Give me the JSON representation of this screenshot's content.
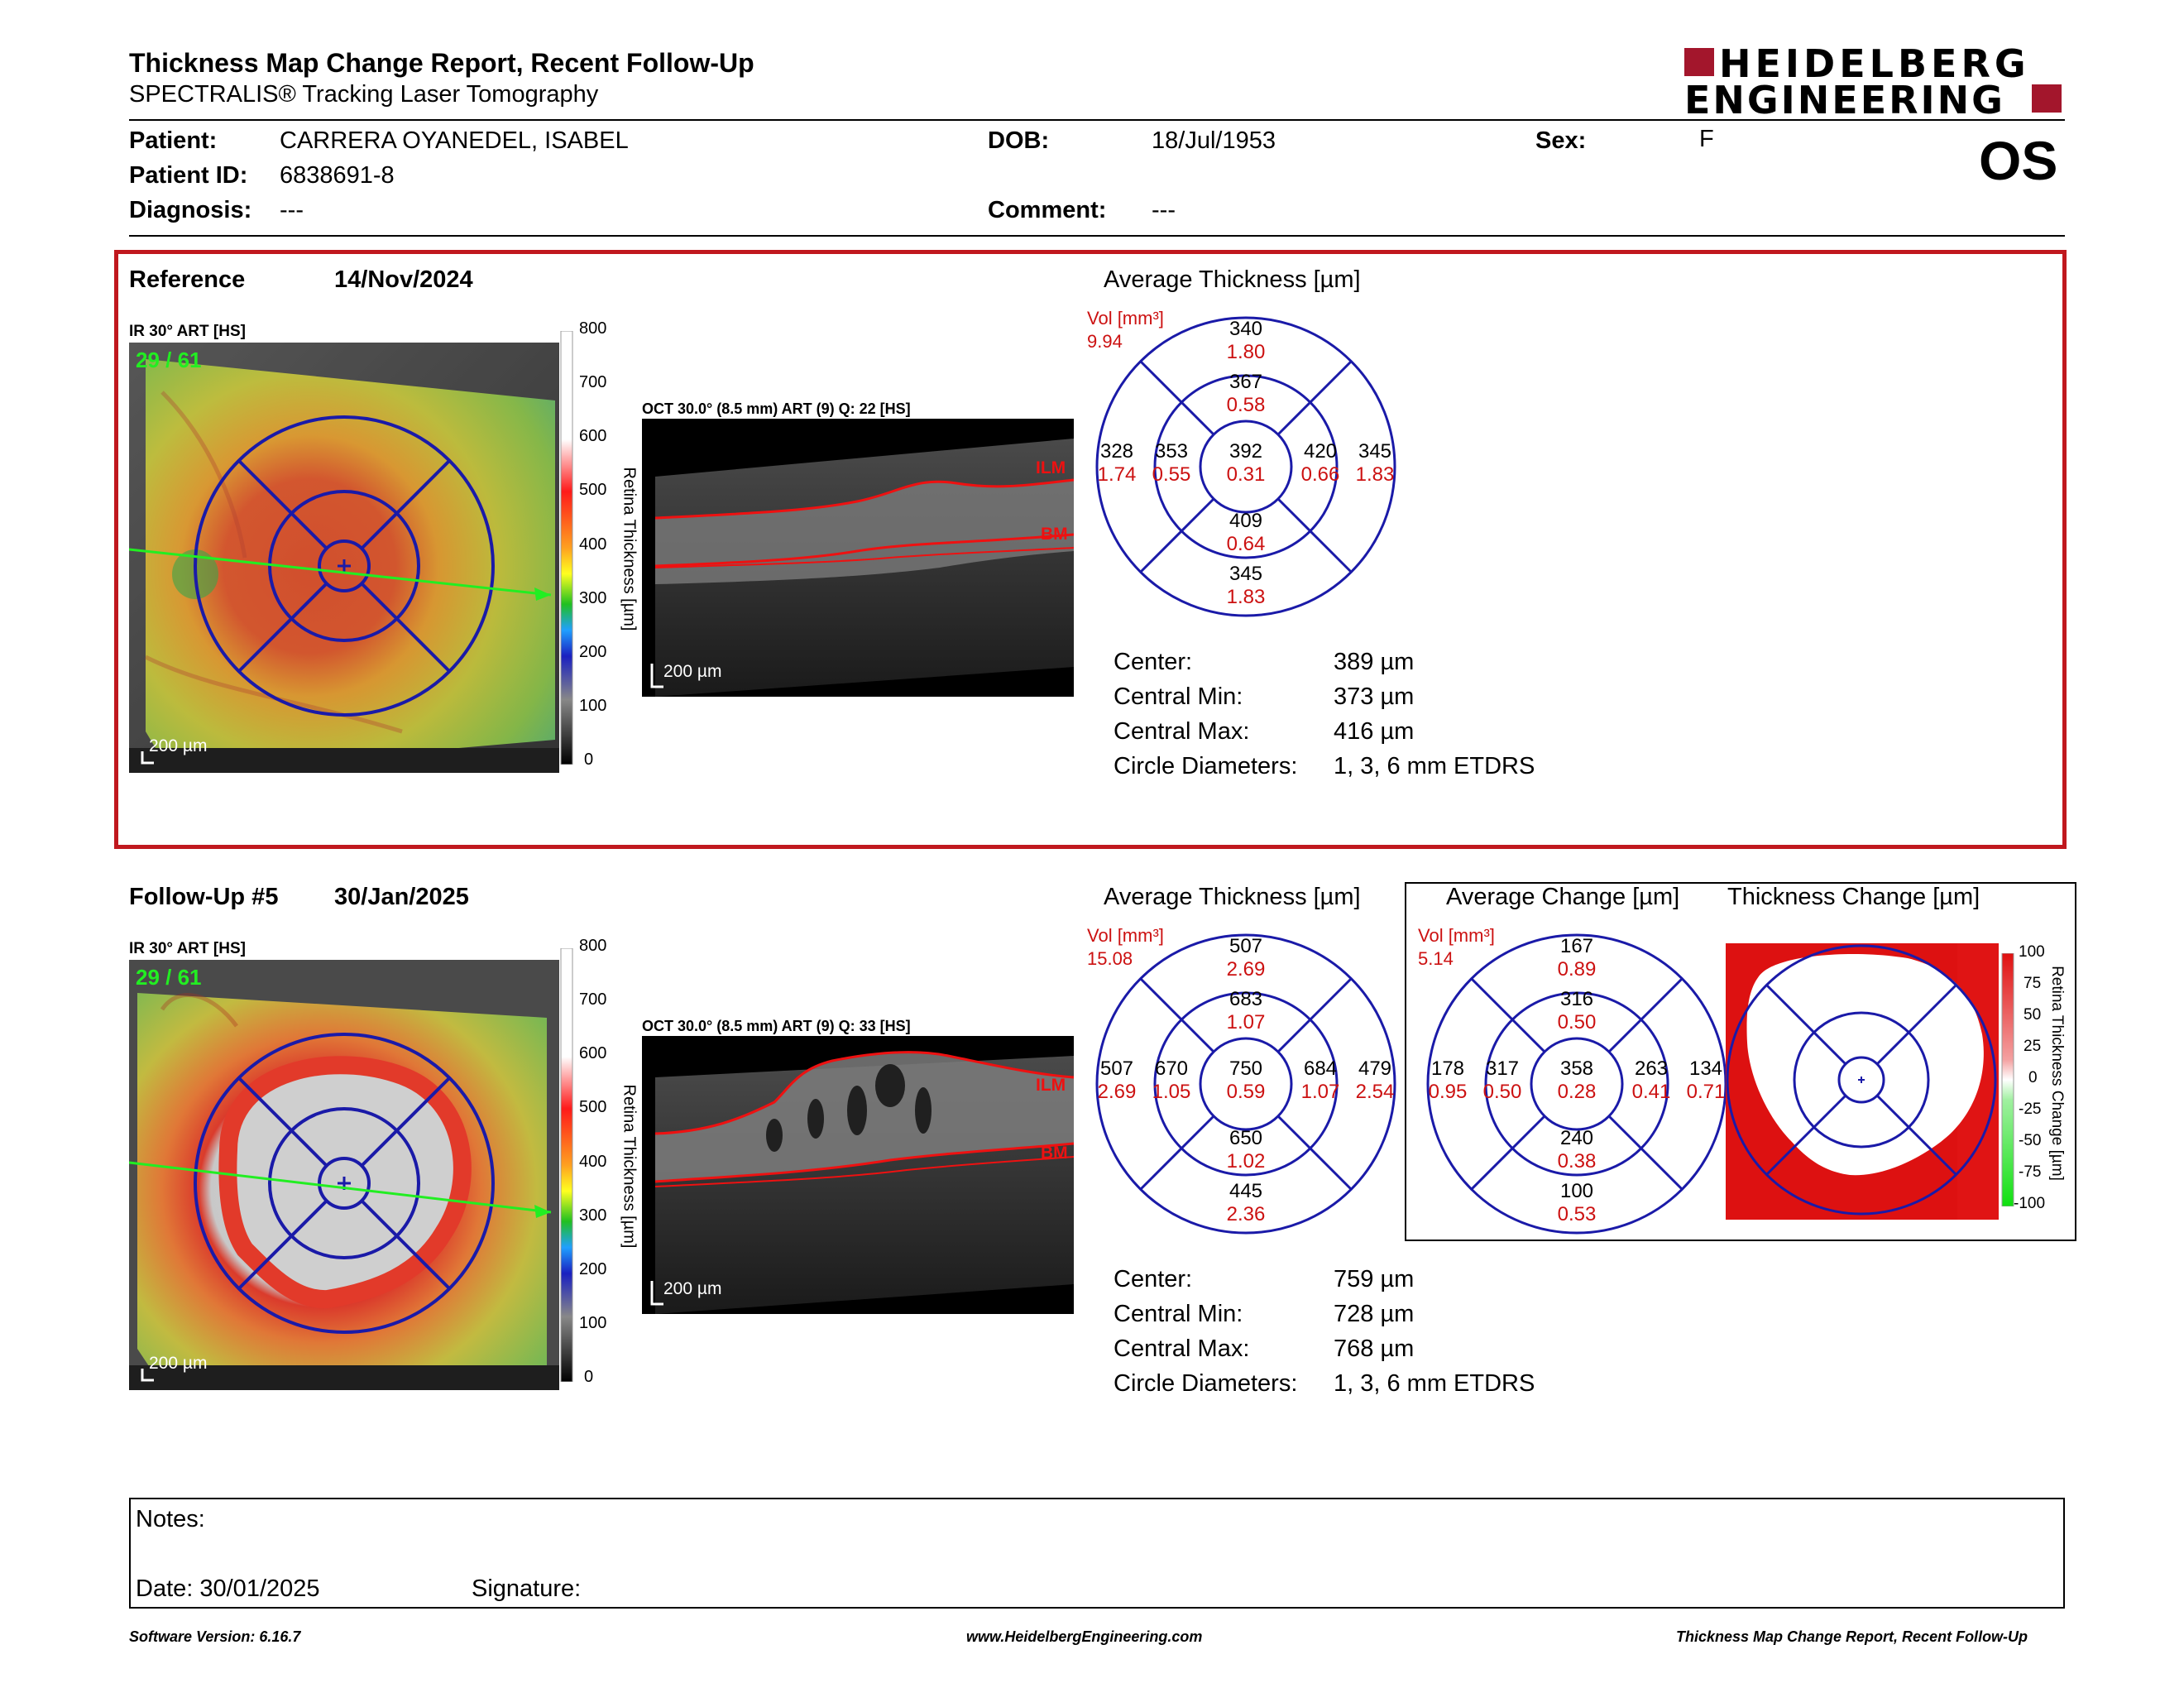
{
  "report": {
    "title": "Thickness Map Change Report, Recent Follow-Up",
    "subtitle": "SPECTRALIS® Tracking Laser Tomography",
    "logo_line1": "HEIDELBERG",
    "logo_line2": "ENGINEERING",
    "eye": "OS"
  },
  "patient": {
    "name_label": "Patient:",
    "name": "CARRERA OYANEDEL, ISABEL",
    "id_label": "Patient ID:",
    "id": "6838691-8",
    "diagnosis_label": "Diagnosis:",
    "diagnosis": "---",
    "dob_label": "DOB:",
    "dob": "18/Jul/1953",
    "comment_label": "Comment:",
    "comment": "---",
    "sex_label": "Sex:",
    "sex": "F"
  },
  "reference": {
    "label": "Reference",
    "date": "14/Nov/2024",
    "ir_label": "IR 30° ART [HS]",
    "ir_overlay": "29 / 61",
    "ir_scalebar": "200 µm",
    "scale_ticks": [
      "800",
      "700",
      "600",
      "500",
      "400",
      "300",
      "200",
      "100",
      "0"
    ],
    "scale_title": "Retina Thickness [µm]",
    "oct_label": "OCT 30.0° (8.5 mm) ART (9) Q: 22 [HS]",
    "oct_scalebar": "200 µm",
    "ilm": "ILM",
    "bm": "BM",
    "avg_title": "Average Thickness [µm]",
    "vol_label": "Vol [mm³]",
    "vol_total": "9.94",
    "grid": {
      "outer_top": [
        "340",
        "1.80"
      ],
      "inner_top": [
        "367",
        "0.58"
      ],
      "outer_left": [
        "328",
        "1.74"
      ],
      "inner_left": [
        "353",
        "0.55"
      ],
      "center": [
        "392",
        "0.31"
      ],
      "inner_right": [
        "420",
        "0.66"
      ],
      "outer_right": [
        "345",
        "1.83"
      ],
      "inner_bottom": [
        "409",
        "0.64"
      ],
      "outer_bottom": [
        "345",
        "1.83"
      ]
    },
    "stats": [
      {
        "label": "Center:",
        "value": "389 µm"
      },
      {
        "label": "Central Min:",
        "value": "373 µm"
      },
      {
        "label": "Central Max:",
        "value": "416 µm"
      },
      {
        "label": "Circle Diameters:",
        "value": "1, 3, 6 mm ETDRS"
      }
    ]
  },
  "followup": {
    "label": "Follow-Up #5",
    "date": "30/Jan/2025",
    "ir_label": "IR 30° ART [HS]",
    "ir_overlay": "29 / 61",
    "ir_scalebar": "200 µm",
    "scale_ticks": [
      "800",
      "700",
      "600",
      "500",
      "400",
      "300",
      "200",
      "100",
      "0"
    ],
    "scale_title": "Retina Thickness [µm]",
    "oct_label": "OCT 30.0° (8.5 mm) ART (9) Q: 33 [HS]",
    "oct_scalebar": "200 µm",
    "ilm": "ILM",
    "bm": "BM",
    "avg_title": "Average Thickness [µm]",
    "vol_label": "Vol [mm³]",
    "vol_total": "15.08",
    "grid": {
      "outer_top": [
        "507",
        "2.69"
      ],
      "inner_top": [
        "683",
        "1.07"
      ],
      "outer_left": [
        "507",
        "2.69"
      ],
      "inner_left": [
        "670",
        "1.05"
      ],
      "center": [
        "750",
        "0.59"
      ],
      "inner_right": [
        "684",
        "1.07"
      ],
      "outer_right": [
        "479",
        "2.54"
      ],
      "inner_bottom": [
        "650",
        "1.02"
      ],
      "outer_bottom": [
        "445",
        "2.36"
      ]
    },
    "change_title": "Average Change [µm]",
    "change_vol_label": "Vol [mm³]",
    "change_vol_total": "5.14",
    "change_grid": {
      "outer_top": [
        "167",
        "0.89"
      ],
      "inner_top": [
        "316",
        "0.50"
      ],
      "outer_left": [
        "178",
        "0.95"
      ],
      "inner_left": [
        "317",
        "0.50"
      ],
      "center": [
        "358",
        "0.28"
      ],
      "inner_right": [
        "263",
        "0.41"
      ],
      "outer_right": [
        "134",
        "0.71"
      ],
      "inner_bottom": [
        "240",
        "0.38"
      ],
      "outer_bottom": [
        "100",
        "0.53"
      ]
    },
    "map_title": "Thickness Change [µm]",
    "change_ticks": [
      "100",
      "75",
      "50",
      "25",
      "0",
      "-25",
      "-50",
      "-75",
      "-100"
    ],
    "change_scale_title": "Retina Thickness Change [µm]",
    "stats": [
      {
        "label": "Center:",
        "value": "759 µm"
      },
      {
        "label": "Central Min:",
        "value": "728 µm"
      },
      {
        "label": "Central Max:",
        "value": "768 µm"
      },
      {
        "label": "Circle Diameters:",
        "value": "1, 3, 6 mm ETDRS"
      }
    ]
  },
  "notes": {
    "notes_label": "Notes:",
    "date_label": "Date: 30/01/2025",
    "signature_label": "Signature:"
  },
  "footer": {
    "left": "Software Version: 6.16.7",
    "center": "www.HeidelbergEngineering.com",
    "right": "Thickness Map Change Report, Recent Follow-Up"
  },
  "colors": {
    "frame_red": "#c0181e",
    "grid_blue": "#1a1aa8",
    "value_red": "#cc1111",
    "logo_red": "#a3162c"
  }
}
